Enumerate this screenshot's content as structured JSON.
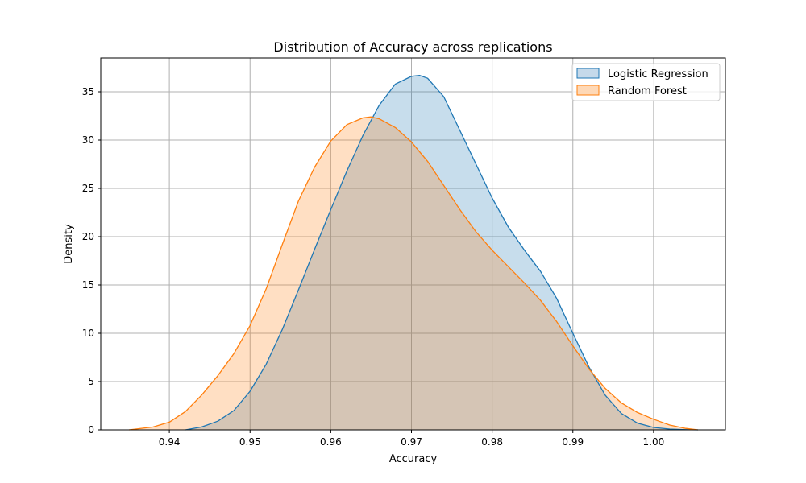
{
  "chart_data": {
    "type": "area",
    "title": "Distribution of Accuracy across replications",
    "xlabel": "Accuracy",
    "ylabel": "Density",
    "xlim": [
      0.9315,
      1.0089
    ],
    "ylim": [
      0,
      38.5
    ],
    "xticks": [
      0.94,
      0.95,
      0.96,
      0.97,
      0.98,
      0.99,
      1.0
    ],
    "xtick_labels": [
      "0.94",
      "0.95",
      "0.96",
      "0.97",
      "0.98",
      "0.99",
      "1.00"
    ],
    "yticks": [
      0,
      5,
      10,
      15,
      20,
      25,
      30,
      35
    ],
    "ytick_labels": [
      "0",
      "5",
      "10",
      "15",
      "20",
      "25",
      "30",
      "35"
    ],
    "grid": true,
    "legend_position": "top-right",
    "series": [
      {
        "name": "Logistic Regression",
        "color": "#1f77b4",
        "fill": "#c5d9ea",
        "x": [
          0.942,
          0.944,
          0.946,
          0.948,
          0.95,
          0.952,
          0.954,
          0.956,
          0.958,
          0.96,
          0.962,
          0.964,
          0.966,
          0.968,
          0.97,
          0.971,
          0.972,
          0.974,
          0.976,
          0.978,
          0.98,
          0.982,
          0.984,
          0.986,
          0.988,
          0.99,
          0.992,
          0.994,
          0.996,
          0.998,
          1.0,
          1.002,
          1.004,
          1.0055
        ],
        "y": [
          0.0,
          0.3,
          0.9,
          2.0,
          4.0,
          6.8,
          10.4,
          14.5,
          18.7,
          22.8,
          26.8,
          30.5,
          33.6,
          35.8,
          36.6,
          36.7,
          36.4,
          34.5,
          31.0,
          27.5,
          24.0,
          21.0,
          18.6,
          16.4,
          13.6,
          10.0,
          6.5,
          3.6,
          1.7,
          0.7,
          0.25,
          0.08,
          0.02,
          0.0
        ]
      },
      {
        "name": "Random Forest",
        "color": "#ff7f0e",
        "fill": "#fed8b6",
        "x": [
          0.935,
          0.938,
          0.94,
          0.942,
          0.944,
          0.946,
          0.948,
          0.95,
          0.952,
          0.954,
          0.956,
          0.958,
          0.96,
          0.962,
          0.964,
          0.965,
          0.966,
          0.968,
          0.97,
          0.972,
          0.974,
          0.976,
          0.978,
          0.98,
          0.982,
          0.984,
          0.986,
          0.988,
          0.99,
          0.992,
          0.994,
          0.996,
          0.998,
          1.0,
          1.002,
          1.004,
          1.0055
        ],
        "y": [
          0.0,
          0.3,
          0.8,
          1.9,
          3.6,
          5.6,
          7.9,
          10.8,
          14.6,
          19.2,
          23.7,
          27.2,
          29.9,
          31.6,
          32.3,
          32.4,
          32.2,
          31.3,
          29.8,
          27.8,
          25.3,
          22.8,
          20.5,
          18.6,
          16.9,
          15.2,
          13.4,
          11.2,
          8.7,
          6.3,
          4.3,
          2.8,
          1.8,
          1.1,
          0.5,
          0.15,
          0.0
        ]
      }
    ]
  }
}
